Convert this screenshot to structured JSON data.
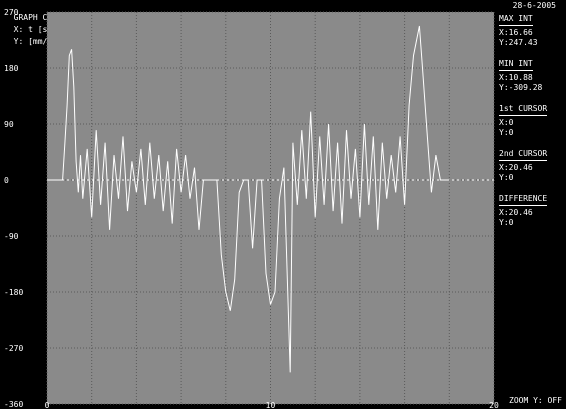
{
  "header": {
    "graph": "GRAPH C",
    "x_label": "X: t [s]",
    "y_label": "Y: [mm/s/s]",
    "date": "28-6-2005"
  },
  "info": {
    "max_int_title": "MAX INT",
    "max_int_x": "X:16.66",
    "max_int_y": "Y:247.43",
    "min_int_title": "MIN INT",
    "min_int_x": "X:10.88",
    "min_int_y": "Y:-309.28",
    "cursor1_title": "1st CURSOR",
    "cursor1_x": "X:0",
    "cursor1_y": "Y:0",
    "cursor2_title": "2nd CURSOR",
    "cursor2_x": "X:20.46",
    "cursor2_y": "Y:0",
    "diff_title": "DIFFERENCE",
    "diff_x": "X:20.46",
    "diff_y": "Y:0",
    "zoom": "ZOOM Y: OFF"
  },
  "chart_data": {
    "type": "line",
    "xlim": [
      0,
      20
    ],
    "ylim": [
      -360,
      270
    ],
    "yticks": [
      270,
      180,
      90,
      0,
      -90,
      -180,
      -270,
      -360
    ],
    "xticks": [
      0,
      10,
      20
    ],
    "grid": true,
    "series": [
      {
        "x": [
          0.0,
          0.4,
          0.7,
          0.8,
          0.9,
          1.0,
          1.1,
          1.2,
          1.3,
          1.4,
          1.5,
          1.6,
          1.8,
          2.0,
          2.2,
          2.4,
          2.6,
          2.8,
          3.0,
          3.2,
          3.4,
          3.6,
          3.8,
          4.0,
          4.2,
          4.4,
          4.6,
          4.8,
          5.0,
          5.2,
          5.4,
          5.6,
          5.8,
          6.0,
          6.2,
          6.4,
          6.6,
          6.8,
          7.0,
          7.2,
          7.4,
          7.6,
          7.8,
          8.0,
          8.2,
          8.4,
          8.6,
          8.8,
          9.0,
          9.2,
          9.4,
          9.6,
          9.8,
          10.0,
          10.2,
          10.4,
          10.6,
          10.88,
          11.0,
          11.2,
          11.4,
          11.6,
          11.8,
          12.0,
          12.2,
          12.4,
          12.6,
          12.8,
          13.0,
          13.2,
          13.4,
          13.6,
          13.8,
          14.0,
          14.2,
          14.4,
          14.6,
          14.8,
          15.0,
          15.2,
          15.4,
          15.6,
          15.8,
          16.0,
          16.2,
          16.4,
          16.66,
          16.8,
          17.0,
          17.2,
          17.4,
          17.6,
          17.8,
          18.0
        ],
        "y": [
          0,
          0,
          0,
          60,
          120,
          200,
          210,
          150,
          30,
          -20,
          40,
          -30,
          50,
          -60,
          80,
          -40,
          60,
          -80,
          40,
          -30,
          70,
          -50,
          30,
          -20,
          50,
          -40,
          60,
          -30,
          40,
          -50,
          30,
          -70,
          50,
          -20,
          40,
          -30,
          20,
          -80,
          0,
          0,
          0,
          0,
          -120,
          -180,
          -210,
          -160,
          -20,
          0,
          0,
          -110,
          0,
          0,
          -150,
          -200,
          -180,
          -30,
          20,
          -309.28,
          60,
          -40,
          80,
          -30,
          110,
          -60,
          70,
          -40,
          90,
          -50,
          60,
          -70,
          80,
          -30,
          50,
          -60,
          90,
          -40,
          70,
          -80,
          60,
          -30,
          40,
          -20,
          70,
          -40,
          120,
          200,
          247.43,
          180,
          80,
          -20,
          40,
          0,
          0,
          0
        ]
      }
    ]
  }
}
